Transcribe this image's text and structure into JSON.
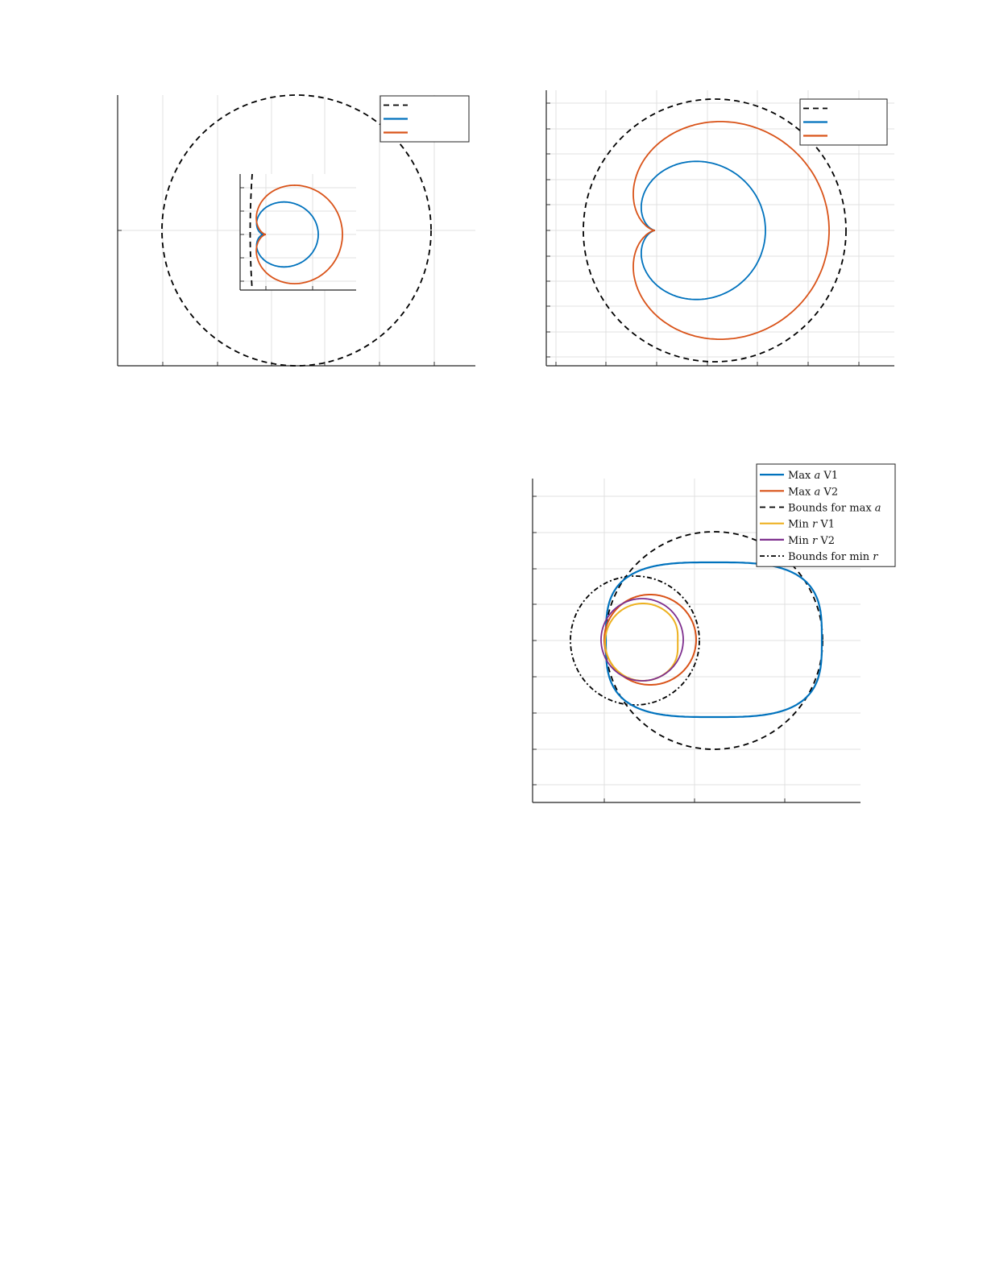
{
  "chart_data": [
    {
      "type": "line",
      "title": "",
      "xlabel": "",
      "ylabel": "",
      "grid": true,
      "legend_placement": "top-right",
      "has_inset": true,
      "series": [
        {
          "name": "",
          "color": "#000000",
          "style": "dashed",
          "shape": "circle"
        },
        {
          "name": "",
          "color": "#0072BD",
          "style": "solid",
          "shape": "cardioid"
        },
        {
          "name": "",
          "color": "#D95319",
          "style": "solid",
          "shape": "cardioid"
        }
      ]
    },
    {
      "type": "line",
      "title": "",
      "xlabel": "",
      "ylabel": "",
      "grid": true,
      "legend_placement": "top-right",
      "series": [
        {
          "name": "",
          "color": "#000000",
          "style": "dashed",
          "shape": "circle"
        },
        {
          "name": "",
          "color": "#0072BD",
          "style": "solid",
          "shape": "cardioid"
        },
        {
          "name": "",
          "color": "#D95319",
          "style": "solid",
          "shape": "cardioid"
        }
      ]
    },
    {
      "type": "line",
      "title": "",
      "xlabel": "",
      "ylabel": "",
      "grid": true,
      "legend_placement": "top-right",
      "series": [
        {
          "name": "Max a V1",
          "label_parts": [
            "Max ",
            "a",
            " V1"
          ],
          "color": "#0072BD",
          "style": "solid"
        },
        {
          "name": "Max a V2",
          "label_parts": [
            "Max ",
            "a",
            " V2"
          ],
          "color": "#D95319",
          "style": "solid"
        },
        {
          "name": "Bounds for max a",
          "label_parts": [
            "Bounds for max ",
            "a",
            ""
          ],
          "color": "#000000",
          "style": "dashed"
        },
        {
          "name": "Min r V1",
          "label_parts": [
            "Min ",
            "r",
            " V1"
          ],
          "color": "#EDB120",
          "style": "solid"
        },
        {
          "name": "Min r V2",
          "label_parts": [
            "Min ",
            "r",
            " V2"
          ],
          "color": "#7E2F8E",
          "style": "solid"
        },
        {
          "name": "Bounds for min r",
          "label_parts": [
            "Bounds for min ",
            "r",
            ""
          ],
          "color": "#000000",
          "style": "dashdot"
        }
      ]
    }
  ]
}
